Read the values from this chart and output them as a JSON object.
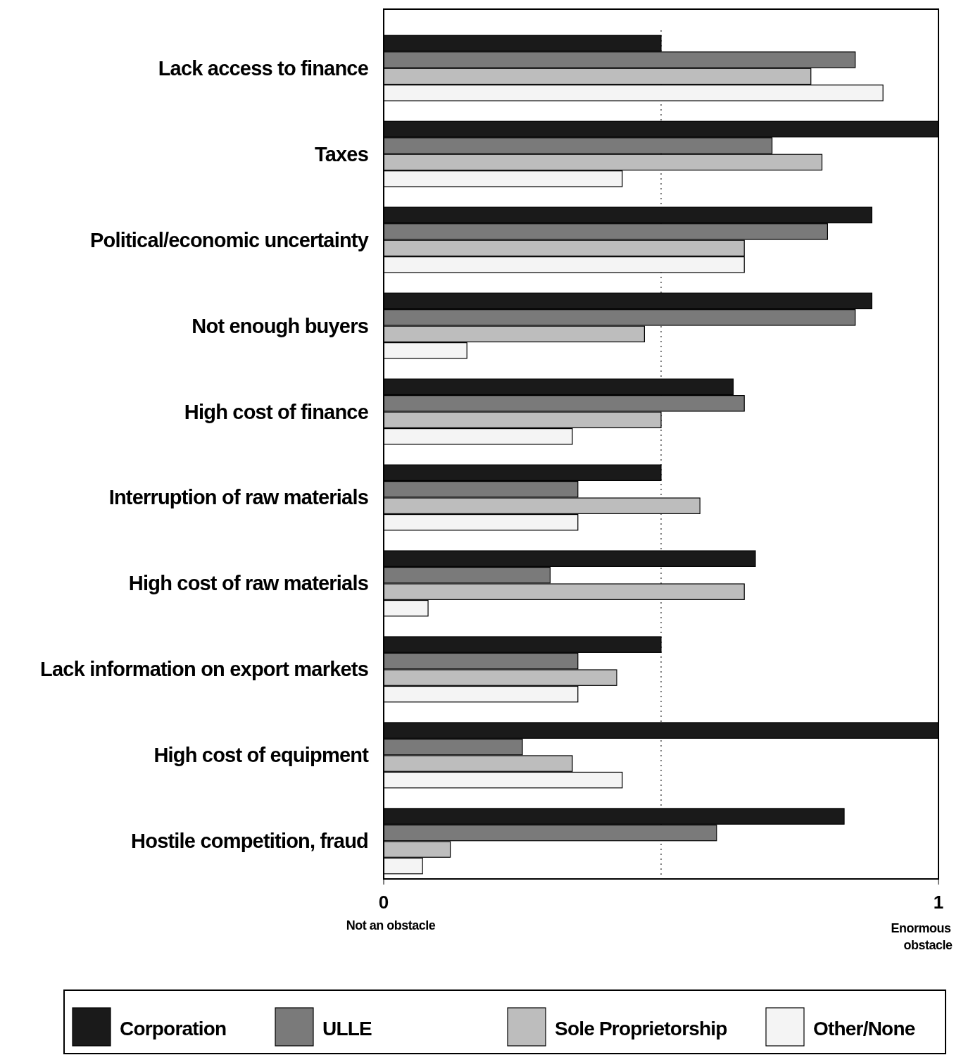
{
  "chart_data": {
    "type": "bar",
    "orientation": "horizontal",
    "categories": [
      "Lack access to finance",
      "Taxes",
      "Political/economic uncertainty",
      "Not enough buyers",
      "High cost of finance",
      "Interruption of raw materials",
      "High cost of raw materials",
      "Lack information on export markets",
      "High cost of equipment",
      "Hostile competition, fraud"
    ],
    "series": [
      {
        "name": "Corporation",
        "color": "#1a1a1a",
        "values": [
          0.5,
          1.0,
          0.88,
          0.88,
          0.63,
          0.5,
          0.67,
          0.5,
          1.0,
          0.83
        ]
      },
      {
        "name": "ULLE",
        "color": "#7a7a7a",
        "values": [
          0.85,
          0.7,
          0.8,
          0.85,
          0.65,
          0.35,
          0.3,
          0.35,
          0.25,
          0.6
        ]
      },
      {
        "name": "Sole Proprietorship",
        "color": "#bdbdbd",
        "values": [
          0.77,
          0.79,
          0.65,
          0.47,
          0.5,
          0.57,
          0.65,
          0.42,
          0.34,
          0.12
        ]
      },
      {
        "name": "Other/None",
        "color": "#f4f4f4",
        "values": [
          0.9,
          0.43,
          0.65,
          0.15,
          0.34,
          0.35,
          0.08,
          0.35,
          0.43,
          0.07
        ]
      }
    ],
    "xlim": [
      0,
      1
    ],
    "xticks": [
      0,
      1
    ],
    "ref_lines": [
      {
        "axis": "x",
        "value": 0.5,
        "line_style": "dotted",
        "color": "#555555"
      }
    ],
    "annotations": [
      "Not an obstacle",
      "Enormous obstacle"
    ],
    "legend": "bottom"
  }
}
